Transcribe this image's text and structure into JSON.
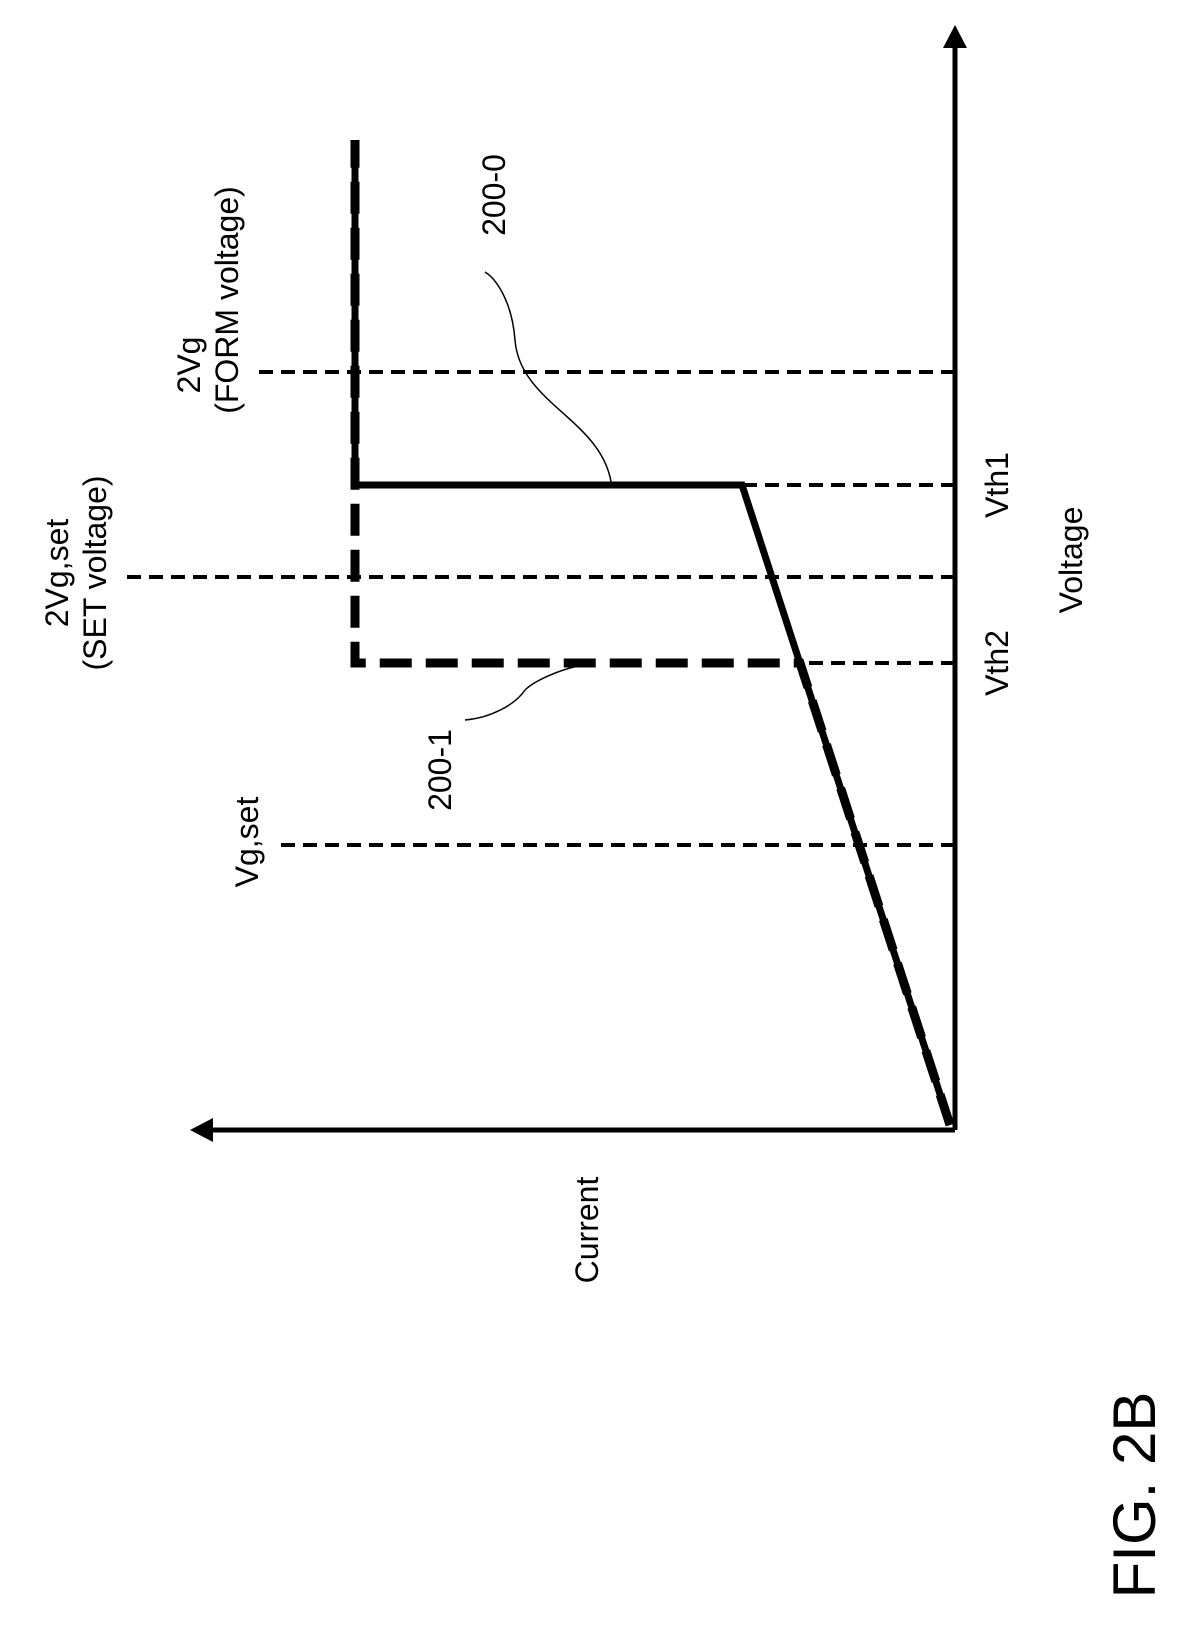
{
  "figure": {
    "label": "FIG. 2B",
    "axes": {
      "x_label": "Voltage",
      "y_label": "Current"
    },
    "markers": {
      "vg_set": "Vg,set",
      "vth2": "Vth2",
      "vth1": "Vth1",
      "two_vg_set": "2Vg,set",
      "set_voltage": "(SET voltage)",
      "two_vg": "2Vg",
      "form_voltage": "(FORM voltage)"
    },
    "curves": {
      "solid": "200-0",
      "dashed": "200-1"
    }
  }
}
